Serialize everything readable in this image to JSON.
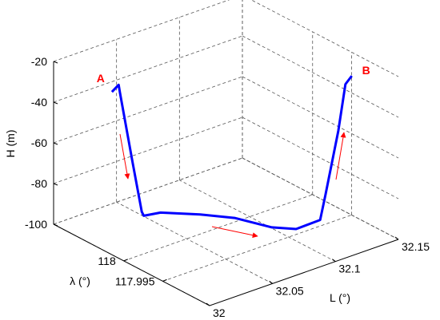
{
  "chart_data": {
    "type": "line3d",
    "x": [
      32.024,
      32.03,
      32.031,
      32.038,
      32.044,
      32.045,
      32.054,
      32.073,
      32.088,
      32.099,
      32.109,
      32.125,
      32.128,
      32.137,
      32.142,
      32.147
    ],
    "y": [
      118.0054,
      118.0055,
      118.0055,
      118.005,
      118.0048,
      118.0047,
      118.004,
      118.002,
      118.0,
      117.997,
      117.9955,
      117.995,
      117.9948,
      117.9946,
      117.9945,
      117.9945
    ],
    "z": [
      -33,
      -31,
      -35,
      -70,
      -95,
      -97,
      -96,
      -97,
      -98,
      -99,
      -99,
      -97,
      -85,
      -55,
      -33,
      -30
    ],
    "color": "#0000ff",
    "xlabel": "L (°)",
    "ylabel": "λ (°)",
    "zlabel": "H (m)",
    "xlim": [
      32,
      32.15
    ],
    "ylim": [
      117.989,
      118.009
    ],
    "zlim": [
      -100,
      -20
    ],
    "xticks": [
      32,
      32.05,
      32.1,
      32.15
    ],
    "yticks": [
      117.995,
      118
    ],
    "zticks": [
      -100,
      -80,
      -60,
      -40,
      -20
    ],
    "grid": true,
    "annotations": [
      {
        "text": "A",
        "color": "#ff0000"
      },
      {
        "text": "B",
        "color": "#ff0000"
      }
    ]
  }
}
